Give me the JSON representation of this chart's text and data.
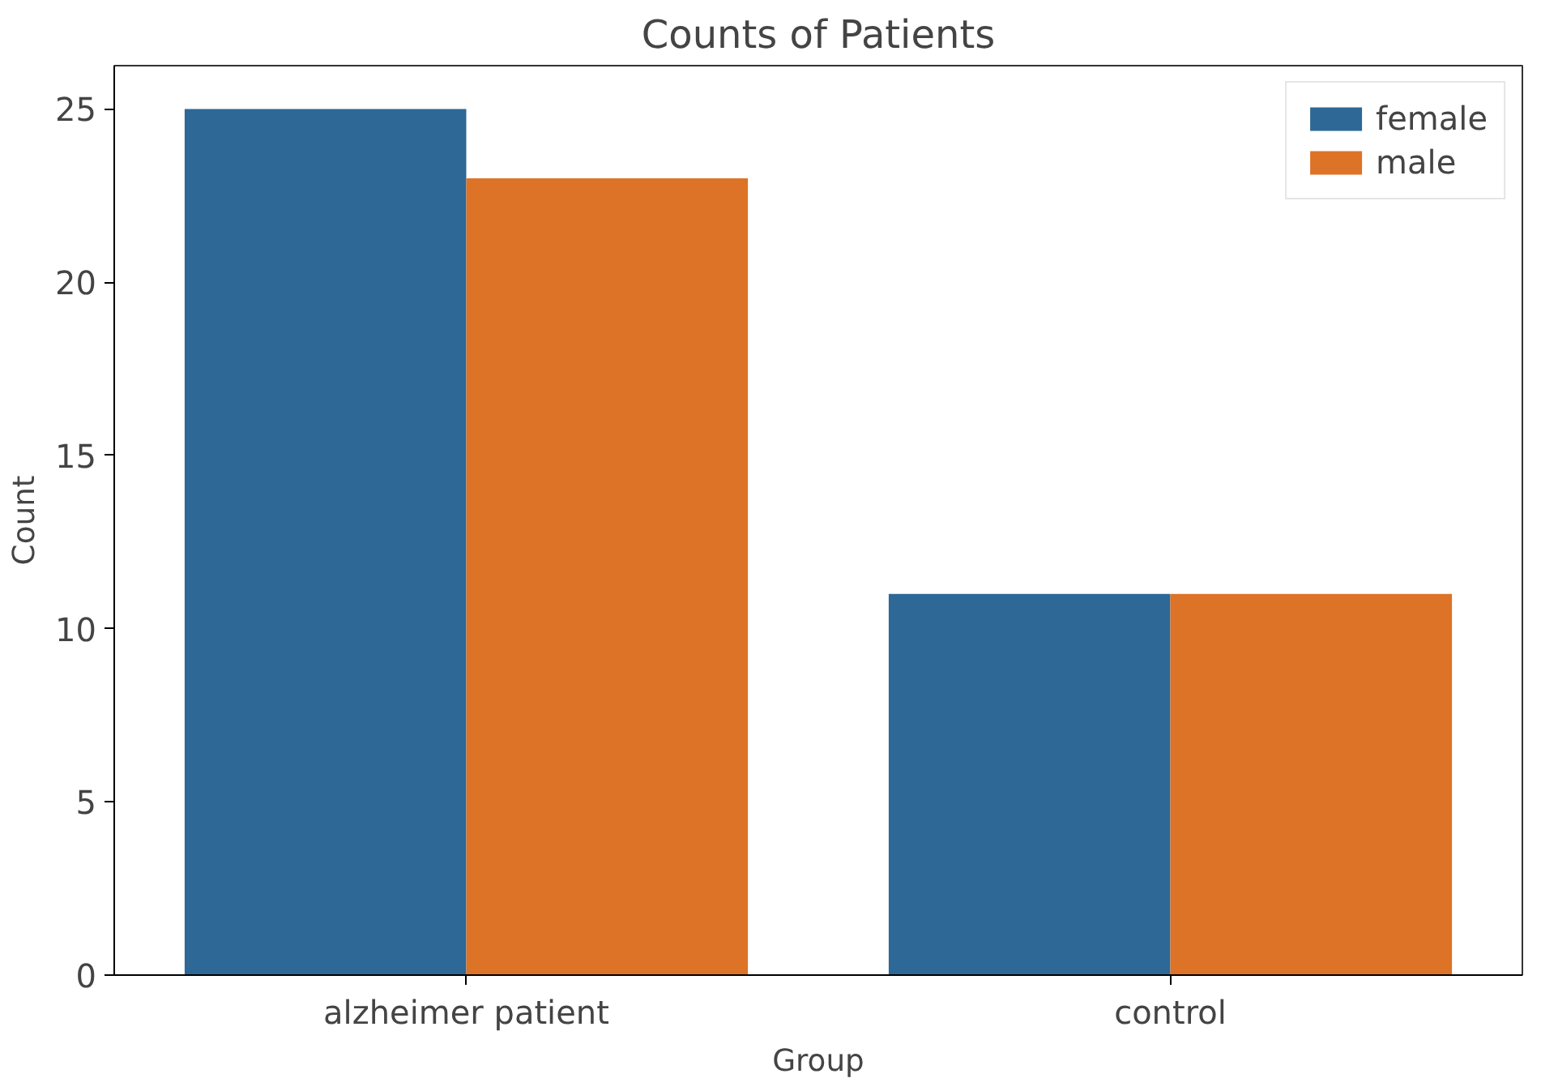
{
  "chart_data": {
    "type": "bar",
    "title": "Counts of Patients",
    "xlabel": "Group",
    "ylabel": "Count",
    "categories": [
      "alzheimer patient",
      "control"
    ],
    "series": [
      {
        "name": "female",
        "color": "#2d6896",
        "values": [
          25,
          11
        ]
      },
      {
        "name": "male",
        "color": "#dd7326",
        "values": [
          23,
          11
        ]
      }
    ],
    "ylim": [
      0,
      26.25
    ],
    "yticks": [
      0,
      5,
      10,
      15,
      20,
      25
    ],
    "grid": false,
    "legend": "top right"
  }
}
